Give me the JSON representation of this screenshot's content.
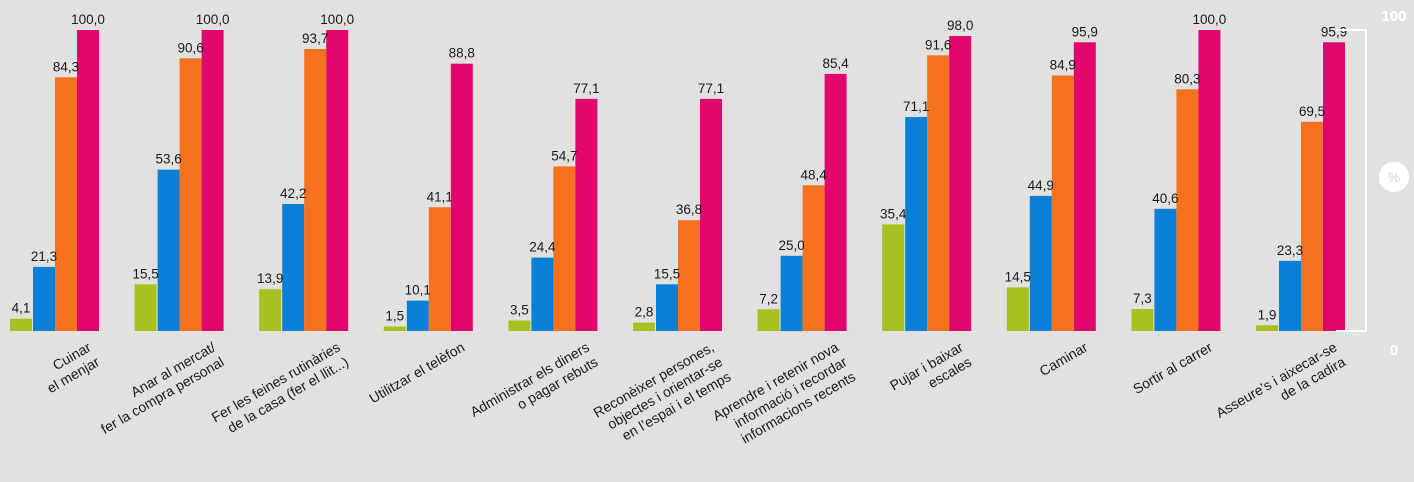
{
  "chart_data": {
    "type": "bar",
    "categories": [
      [
        "Cuinar",
        "el menjar"
      ],
      [
        "Anar al mercat/",
        "fer la compra personal"
      ],
      [
        "Fer les feines rutinàries",
        "de la casa (fer el llit...)"
      ],
      [
        "Utilitzar el telèfon"
      ],
      [
        "Administrar els diners",
        "o pagar rebuts"
      ],
      [
        "Reconèixer persones,",
        "objectes i orientar-se",
        "en l’espai i el temps"
      ],
      [
        "Aprendre i retenir nova",
        "informació i recordar",
        "informacions recents"
      ],
      [
        "Pujar i baixar",
        "escales"
      ],
      [
        "Caminar"
      ],
      [
        "Sortir al carrer"
      ],
      [
        "Asseure’s i aixecar-se",
        "de la cadira"
      ]
    ],
    "series": [
      {
        "color": "#a8c020",
        "values": [
          4.1,
          15.5,
          13.9,
          1.5,
          3.5,
          2.8,
          7.2,
          35.4,
          14.5,
          7.3,
          1.9
        ]
      },
      {
        "color": "#0a7fd6",
        "values": [
          21.3,
          53.6,
          42.2,
          10.1,
          24.4,
          15.5,
          25.0,
          71.1,
          44.9,
          40.6,
          23.3
        ]
      },
      {
        "color": "#f7721e",
        "values": [
          84.3,
          90.6,
          93.7,
          41.1,
          54.7,
          36.8,
          48.4,
          91.6,
          84.9,
          80.3,
          69.5
        ]
      },
      {
        "color": "#e0066e",
        "values": [
          100.0,
          100.0,
          100.0,
          88.8,
          77.1,
          77.1,
          85.4,
          98.0,
          95.9,
          100.0,
          95.9
        ]
      }
    ],
    "value_labels": [
      [
        "4,1",
        "21,3",
        "84,3",
        "100,0"
      ],
      [
        "15,5",
        "53,6",
        "90,6",
        "100,0"
      ],
      [
        "13,9",
        "42,2",
        "93,7",
        "100,0"
      ],
      [
        "1,5",
        "10,1",
        "41,1",
        "88,8"
      ],
      [
        "3,5",
        "24,4",
        "54,7",
        "77,1"
      ],
      [
        "2,8",
        "15,5",
        "36,8",
        "77,1"
      ],
      [
        "7,2",
        "25,0",
        "48,4",
        "85,4"
      ],
      [
        "35,4",
        "71,1",
        "91,6",
        "98,0"
      ],
      [
        "14,5",
        "44,9",
        "84,9",
        "95,9"
      ],
      [
        "7,3",
        "40,6",
        "80,3",
        "100,0"
      ],
      [
        "1,9",
        "23,3",
        "69,5",
        "95,9"
      ]
    ],
    "ylim": [
      0,
      100
    ],
    "y_tick_labels": [
      "0",
      "100"
    ],
    "unit_label": "%",
    "axis_color": "#ffffff",
    "grid": false,
    "legend": "none"
  }
}
